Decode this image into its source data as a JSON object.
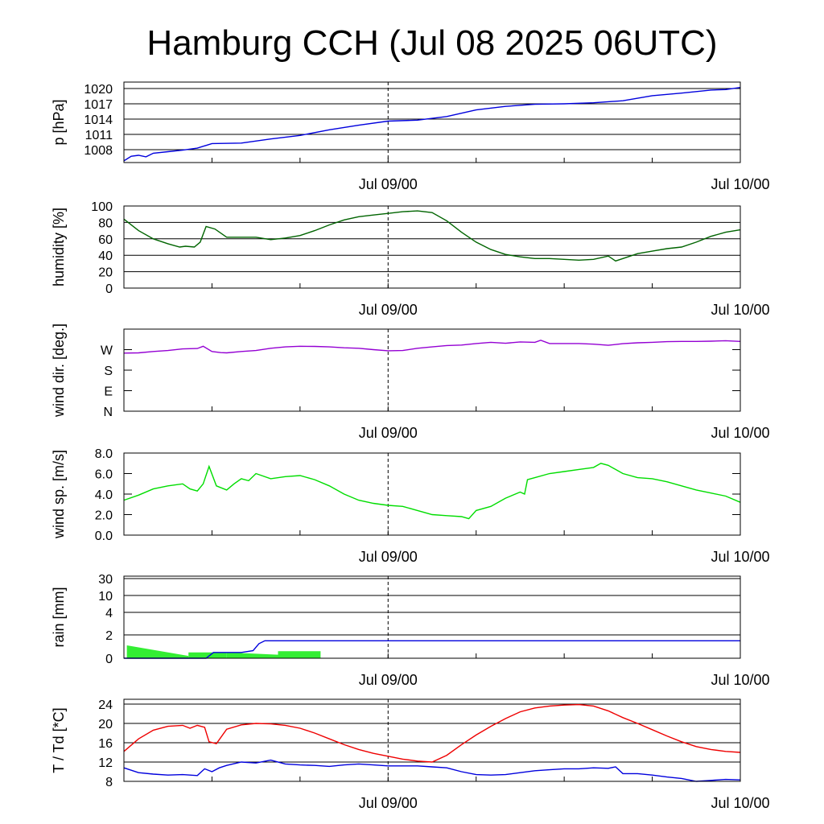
{
  "title": "Hamburg CCH (Jul 08 2025 06UTC)",
  "colors": {
    "pressure": "#0000dd",
    "humidity": "#006400",
    "wind_dir": "#9400d3",
    "wind_speed": "#00dd00",
    "rain_total": "#0000dd",
    "rain_rate": "#33ee33",
    "temperature": "#ee0000",
    "dewpoint": "#0000dd"
  },
  "chart_data": [
    {
      "id": "pressure",
      "type": "line",
      "ylabel": "p [hPa]",
      "x_unit": "hours since Jul 08 06UTC",
      "xlim": [
        0,
        42
      ],
      "ylim": [
        1005,
        1021
      ],
      "yticks": [
        1008,
        1011,
        1014,
        1017,
        1020
      ],
      "ytick_labels": [
        "1008",
        "1011",
        "1014",
        "1017",
        "1020"
      ],
      "grid": true,
      "x_tick_labels": [
        {
          "x": 18,
          "label": "Jul 09/00"
        },
        {
          "x": 42,
          "label": "Jul 10/00"
        }
      ],
      "series": [
        {
          "color_key": "pressure",
          "x": [
            0,
            0.5,
            1,
            1.5,
            2,
            3,
            4,
            5,
            6,
            8,
            10,
            12,
            14,
            16,
            18,
            20,
            22,
            24,
            26,
            28,
            30,
            32,
            34,
            36,
            38,
            40,
            41,
            42
          ],
          "y": [
            1005.8,
            1006.7,
            1006.9,
            1006.6,
            1007.3,
            1007.6,
            1007.9,
            1008.3,
            1009.2,
            1009.3,
            1010.1,
            1010.8,
            1011.9,
            1012.8,
            1013.6,
            1013.8,
            1014.5,
            1015.8,
            1016.5,
            1016.9,
            1017.0,
            1017.2,
            1017.6,
            1018.6,
            1019.1,
            1019.7,
            1019.8,
            1020.2
          ]
        }
      ]
    },
    {
      "id": "humidity",
      "type": "line",
      "ylabel": "humidity [%]",
      "xlim": [
        0,
        42
      ],
      "ylim": [
        0,
        100
      ],
      "yticks": [
        0,
        20,
        40,
        60,
        80,
        100
      ],
      "ytick_labels": [
        "0",
        "20",
        "40",
        "60",
        "80",
        "100"
      ],
      "grid": true,
      "x_tick_labels": [
        {
          "x": 18,
          "label": "Jul 09/00"
        },
        {
          "x": 42,
          "label": "Jul 10/00"
        }
      ],
      "series": [
        {
          "color_key": "humidity",
          "x": [
            0,
            1,
            2,
            3,
            3.8,
            4.2,
            4.8,
            5.2,
            5.6,
            6.2,
            7,
            8,
            9,
            10,
            11,
            12,
            13,
            14,
            15,
            16,
            17,
            18,
            19,
            20,
            21,
            22,
            23,
            24,
            25,
            26,
            27,
            28,
            29,
            30,
            31,
            32,
            33,
            33.5,
            34,
            35,
            36,
            37,
            38,
            39,
            40,
            41,
            42
          ],
          "y": [
            84,
            70,
            60,
            54,
            50,
            51,
            50,
            56,
            75,
            72,
            62,
            62,
            62,
            59,
            61,
            64,
            70,
            77,
            83,
            87,
            89,
            91,
            93,
            94,
            92,
            82,
            68,
            56,
            47,
            41,
            38,
            36,
            36,
            35,
            34,
            35,
            39,
            33,
            36,
            42,
            45,
            48,
            50,
            56,
            63,
            68,
            71
          ]
        }
      ]
    },
    {
      "id": "wind_dir",
      "type": "line",
      "ylabel": "wind dir. [deg.]",
      "xlim": [
        0,
        42
      ],
      "ylim": [
        0,
        360
      ],
      "yticks": [
        0,
        90,
        180,
        270
      ],
      "ytick_labels": [
        "N",
        "E",
        "S",
        "W"
      ],
      "grid": false,
      "x_tick_labels": [
        {
          "x": 18,
          "label": "Jul 09/00"
        },
        {
          "x": 42,
          "label": "Jul 10/00"
        }
      ],
      "series": [
        {
          "color_key": "wind_dir",
          "x": [
            0,
            1,
            2,
            3,
            4,
            5,
            5.4,
            6,
            6.6,
            7,
            8,
            9,
            10,
            11,
            12,
            13,
            14,
            15,
            16,
            17,
            18,
            19,
            20,
            21,
            22,
            23,
            24,
            25,
            26,
            27,
            28,
            28.4,
            29,
            30,
            31,
            32,
            33,
            34,
            35,
            36,
            37,
            38,
            39,
            40,
            41,
            42
          ],
          "y": [
            255,
            256,
            262,
            266,
            273,
            275,
            285,
            262,
            257,
            256,
            262,
            266,
            276,
            282,
            285,
            284,
            282,
            278,
            276,
            270,
            265,
            266,
            276,
            282,
            288,
            290,
            297,
            302,
            298,
            304,
            302,
            311,
            297,
            297,
            297,
            294,
            289,
            296,
            300,
            302,
            305,
            306,
            306,
            307,
            309,
            306
          ]
        }
      ]
    },
    {
      "id": "wind_speed",
      "type": "line",
      "ylabel": "wind sp. [m/s]",
      "xlim": [
        0,
        42
      ],
      "ylim": [
        0,
        8
      ],
      "yticks": [
        0,
        2,
        4,
        6,
        8
      ],
      "ytick_labels": [
        "0.0",
        "2.0",
        "4.0",
        "6.0",
        "8.0"
      ],
      "grid": false,
      "x_tick_labels": [
        {
          "x": 18,
          "label": "Jul 09/00"
        },
        {
          "x": 42,
          "label": "Jul 10/00"
        }
      ],
      "series": [
        {
          "color_key": "wind_speed",
          "x": [
            0,
            1,
            2,
            3,
            4,
            4.5,
            5,
            5.4,
            5.8,
            6.3,
            7,
            7.5,
            8,
            8.5,
            9,
            10,
            11,
            12,
            13,
            14,
            15,
            16,
            17,
            18,
            19,
            20,
            21,
            22,
            23,
            23.5,
            24,
            25,
            26,
            27,
            27.3,
            27.5,
            28,
            29,
            30,
            31,
            32,
            32.5,
            33,
            34,
            35,
            36,
            37,
            38,
            39,
            40,
            41,
            42
          ],
          "y": [
            3.4,
            3.9,
            4.5,
            4.8,
            5.0,
            4.5,
            4.3,
            5.0,
            6.7,
            4.8,
            4.4,
            5.0,
            5.5,
            5.3,
            6.0,
            5.5,
            5.7,
            5.8,
            5.4,
            4.8,
            4.0,
            3.4,
            3.1,
            2.9,
            2.8,
            2.4,
            2.0,
            1.9,
            1.8,
            1.6,
            2.4,
            2.8,
            3.6,
            4.2,
            4.0,
            5.4,
            5.6,
            6.0,
            6.2,
            6.4,
            6.6,
            7.0,
            6.8,
            6.0,
            5.6,
            5.5,
            5.2,
            4.8,
            4.4,
            4.1,
            3.8,
            3.2
          ]
        }
      ]
    },
    {
      "id": "rain",
      "type": "line",
      "ylabel": "rain [mm]",
      "xlim": [
        0,
        42
      ],
      "ylim": [
        0,
        30
      ],
      "yticks": [
        0,
        2,
        4,
        10,
        30
      ],
      "ytick_labels": [
        "0",
        "2",
        "4",
        "10",
        "30"
      ],
      "scale": "nonlinear",
      "grid": true,
      "x_tick_labels": [
        {
          "x": 18,
          "label": "Jul 09/00"
        },
        {
          "x": 42,
          "label": "Jul 10/00"
        }
      ],
      "series": [
        {
          "color_key": "rain_total",
          "x": [
            0,
            5.6,
            6.1,
            8,
            8.8,
            9.2,
            9.6,
            42
          ],
          "y": [
            0,
            0,
            0.5,
            0.5,
            0.65,
            1.25,
            1.5,
            1.5
          ]
        }
      ],
      "bars": [
        {
          "color_key": "rain_rate",
          "x0": 0.2,
          "x1": 4.4,
          "y_start": 1.1,
          "y_end": 0.2
        },
        {
          "color_key": "rain_rate",
          "x0": 4.4,
          "x1": 7.0,
          "y_start": 0.5,
          "y_end": 0.5
        },
        {
          "color_key": "rain_rate",
          "x0": 7.0,
          "x1": 10.5,
          "y_start": 0.5,
          "y_end": 0.3
        },
        {
          "color_key": "rain_rate",
          "x0": 10.5,
          "x1": 13.4,
          "y_start": 0.6,
          "y_end": 0.6
        }
      ]
    },
    {
      "id": "temperature",
      "type": "line",
      "ylabel": "T / Td [*C]",
      "xlim": [
        0,
        42
      ],
      "ylim": [
        8,
        25
      ],
      "yticks": [
        8,
        12,
        16,
        20,
        24
      ],
      "ytick_labels": [
        "8",
        "12",
        "16",
        "20",
        "24"
      ],
      "grid": true,
      "x_tick_labels": [
        {
          "x": 18,
          "label": "Jul 09/00"
        },
        {
          "x": 42,
          "label": "Jul 10/00"
        }
      ],
      "series": [
        {
          "color_key": "temperature",
          "name": "T",
          "x": [
            0,
            1,
            2,
            3,
            4,
            4.5,
            5,
            5.5,
            5.8,
            6.3,
            7,
            8,
            9,
            10,
            11,
            12,
            13,
            14,
            15,
            16,
            17,
            18,
            19,
            20,
            21,
            22,
            23,
            24,
            25,
            26,
            27,
            28,
            29,
            30,
            31,
            32,
            33,
            34,
            35,
            36,
            37,
            38,
            39,
            40,
            41,
            42
          ],
          "y": [
            14.2,
            16.8,
            18.6,
            19.4,
            19.6,
            19.0,
            19.6,
            19.2,
            16.2,
            15.8,
            18.8,
            19.7,
            20.0,
            19.9,
            19.6,
            19.0,
            18.0,
            16.8,
            15.6,
            14.6,
            13.8,
            13.2,
            12.6,
            12.2,
            12.0,
            13.4,
            15.6,
            17.6,
            19.4,
            21.0,
            22.4,
            23.2,
            23.6,
            23.8,
            23.9,
            23.6,
            22.6,
            21.2,
            20.0,
            18.7,
            17.4,
            16.2,
            15.2,
            14.6,
            14.2,
            14.0
          ]
        },
        {
          "color_key": "dewpoint",
          "name": "Td",
          "x": [
            0,
            1,
            2,
            3,
            4,
            5,
            5.5,
            6,
            6.5,
            7,
            8,
            9,
            10,
            11,
            12,
            13,
            14,
            15,
            16,
            17,
            18,
            19,
            20,
            21,
            22,
            23,
            24,
            25,
            26,
            27,
            28,
            29,
            30,
            31,
            32,
            33,
            33.5,
            34,
            35,
            36,
            37,
            38,
            39,
            40,
            41,
            42
          ],
          "y": [
            10.8,
            9.8,
            9.5,
            9.3,
            9.4,
            9.2,
            10.6,
            10.0,
            10.8,
            11.3,
            12.0,
            11.8,
            12.4,
            11.6,
            11.4,
            11.3,
            11.1,
            11.4,
            11.6,
            11.4,
            11.2,
            11.2,
            11.2,
            11.0,
            10.8,
            10.0,
            9.4,
            9.3,
            9.4,
            9.8,
            10.2,
            10.4,
            10.6,
            10.6,
            10.8,
            10.7,
            11.0,
            9.6,
            9.6,
            9.3,
            8.9,
            8.6,
            8.0,
            8.2,
            8.4,
            8.3
          ]
        }
      ]
    }
  ]
}
